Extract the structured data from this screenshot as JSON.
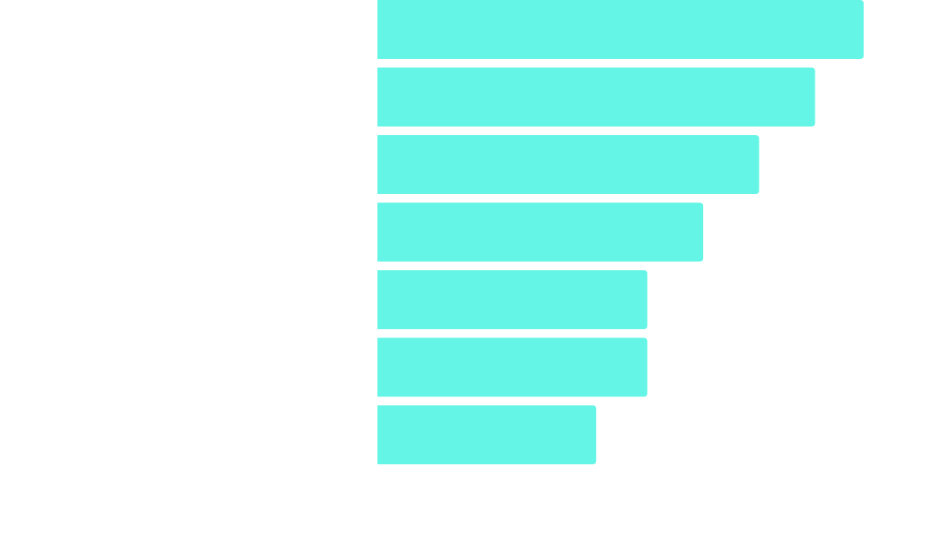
{
  "chart_data": {
    "type": "bar",
    "orientation": "horizontal",
    "bar_color": "#64f5e6",
    "background_color": "#ffffff",
    "values": [
      100,
      90,
      78.5,
      67,
      55.5,
      55.5,
      45
    ],
    "xlim": [
      0,
      100
    ],
    "title": "",
    "xlabel": "",
    "ylabel": "",
    "grid": false,
    "legend": "none"
  }
}
